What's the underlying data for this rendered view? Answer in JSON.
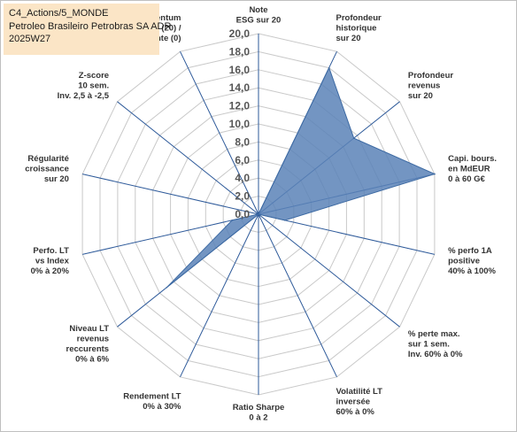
{
  "header": {
    "line1": "C4_Actions/5_MONDE",
    "line2": "Petroleo Brasileiro Petrobras SA ADR",
    "line3": "2025W27"
  },
  "chart_data": {
    "type": "radar",
    "title": "",
    "rlim": [
      0,
      20
    ],
    "ticks": [
      "0,0",
      "2,0",
      "4,0",
      "6,0",
      "8,0",
      "10,0",
      "12,0",
      "14,0",
      "16,0",
      "18,0",
      "20,0"
    ],
    "grid": true,
    "fill_color": "#5b83b7",
    "categories": [
      [
        "Note",
        "ESG sur 20"
      ],
      [
        "Profondeur",
        "historique",
        "sur 20"
      ],
      [
        "Profondeur",
        "revenus",
        "sur 20"
      ],
      [
        "Capi. bours.",
        "en MdEUR",
        "0 à 60 G€"
      ],
      [
        "% perfo 1A",
        "positive",
        "40% à 100%"
      ],
      [
        "% perte max.",
        "sur 1 sem.",
        "Inv. 60% à 0%"
      ],
      [
        "Volatilité LT",
        "inversée",
        "60% à 0%"
      ],
      [
        "Ratio Sharpe",
        "0 à 2"
      ],
      [
        "Rendement LT",
        "0% à 30%"
      ],
      [
        "Niveau LT",
        "revenus",
        "reccurents",
        "0% à 6%"
      ],
      [
        "Perfo. LT",
        "vs Index",
        "0% à 20%"
      ],
      [
        "Régularité",
        "croissance",
        "sur 20"
      ],
      [
        "Z-score",
        "10 sem.",
        "Inv. 2,5 à -2,5"
      ],
      [
        "Momentum",
        "Achat (20) /",
        "Vente (0)"
      ]
    ],
    "values": [
      0,
      18,
      13.5,
      20,
      3,
      0,
      0,
      0,
      0,
      13,
      3,
      0,
      0,
      0
    ]
  }
}
